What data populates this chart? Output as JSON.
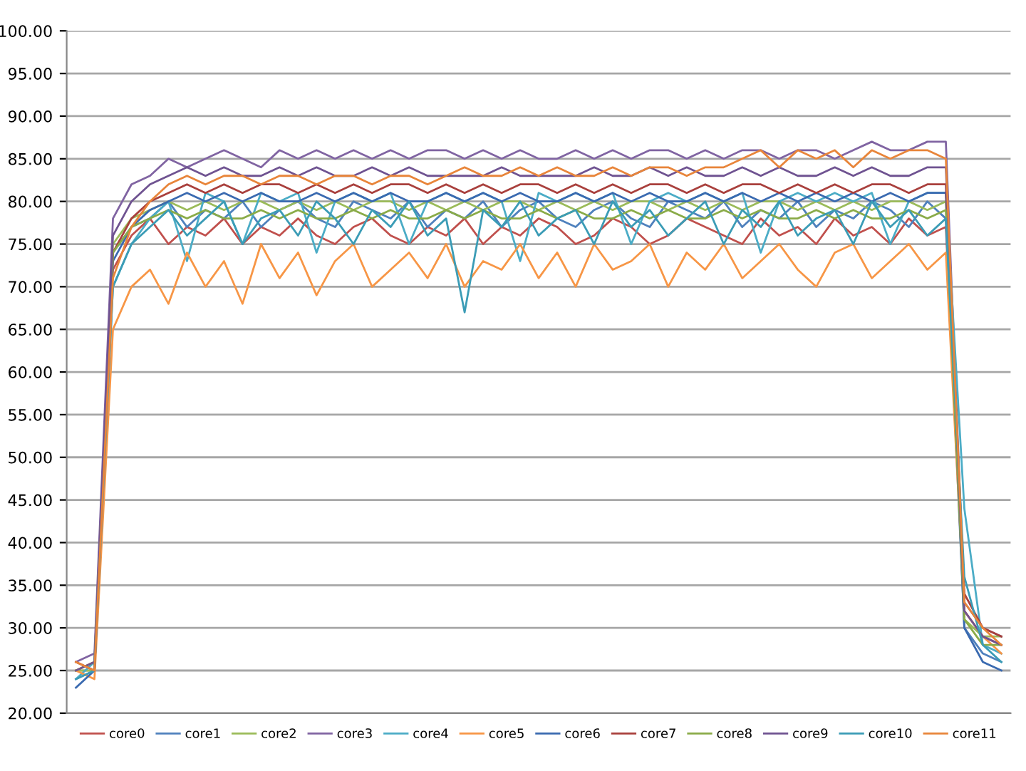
{
  "chart_data": {
    "type": "line",
    "categories": [
      null,
      null,
      null,
      null,
      null,
      null,
      null,
      null,
      null,
      null,
      null,
      null,
      null,
      null,
      null,
      null,
      null,
      null,
      null,
      null,
      null,
      null,
      null,
      null,
      null,
      null,
      null,
      null,
      null,
      null,
      null,
      null,
      null,
      null,
      null,
      null,
      null,
      null,
      null,
      null,
      null,
      null,
      null,
      null,
      null,
      null,
      null,
      null,
      null,
      null,
      null
    ],
    "ylim": [
      20,
      100
    ],
    "yticks": [
      {
        "value": 20,
        "label": "20.00"
      },
      {
        "value": 25,
        "label": "25.00"
      },
      {
        "value": 30,
        "label": "30.00"
      },
      {
        "value": 35,
        "label": "35.00"
      },
      {
        "value": 40,
        "label": "40.00"
      },
      {
        "value": 45,
        "label": "45.00"
      },
      {
        "value": 50,
        "label": "50.00"
      },
      {
        "value": 55,
        "label": "55.00"
      },
      {
        "value": 60,
        "label": "60.00"
      },
      {
        "value": 65,
        "label": "65.00"
      },
      {
        "value": 70,
        "label": "70.00"
      },
      {
        "value": 75,
        "label": "75.00"
      },
      {
        "value": 80,
        "label": "80.00"
      },
      {
        "value": 85,
        "label": "85.00"
      },
      {
        "value": 90,
        "label": "90.00"
      },
      {
        "value": 95,
        "label": "95.00"
      },
      {
        "value": 100,
        "label": "100.00"
      }
    ],
    "grid": "y",
    "legend": "bottom",
    "tick_labels": "y",
    "marker": "none",
    "line_style": "solid",
    "series": [
      {
        "name": "core0",
        "color": "#c0504d",
        "values": [
          25,
          26,
          72,
          76,
          78,
          75,
          77,
          76,
          78,
          75,
          77,
          76,
          78,
          76,
          75,
          77,
          78,
          76,
          75,
          77,
          76,
          78,
          75,
          77,
          76,
          78,
          77,
          75,
          76,
          78,
          77,
          75,
          76,
          78,
          77,
          76,
          75,
          78,
          76,
          77,
          75,
          78,
          76,
          77,
          75,
          78,
          76,
          77,
          32,
          29,
          28
        ]
      },
      {
        "name": "core1",
        "color": "#4f81bd",
        "values": [
          24,
          25,
          74,
          77,
          78,
          80,
          77,
          79,
          78,
          80,
          77,
          79,
          80,
          78,
          77,
          80,
          79,
          78,
          80,
          77,
          79,
          78,
          80,
          77,
          79,
          80,
          78,
          77,
          79,
          80,
          78,
          77,
          80,
          79,
          78,
          80,
          77,
          79,
          78,
          80,
          77,
          79,
          78,
          80,
          79,
          77,
          80,
          78,
          30,
          27,
          26
        ]
      },
      {
        "name": "core2",
        "color": "#9bbb59",
        "values": [
          25,
          25,
          75,
          78,
          79,
          80,
          79,
          80,
          79,
          80,
          80,
          79,
          80,
          79,
          80,
          79,
          80,
          80,
          79,
          80,
          79,
          80,
          79,
          80,
          80,
          79,
          80,
          79,
          80,
          79,
          80,
          80,
          79,
          80,
          79,
          80,
          79,
          80,
          80,
          79,
          80,
          79,
          80,
          79,
          80,
          80,
          79,
          80,
          31,
          29,
          29
        ]
      },
      {
        "name": "core3",
        "color": "#8064a2",
        "values": [
          26,
          27,
          78,
          82,
          83,
          85,
          84,
          85,
          86,
          85,
          84,
          86,
          85,
          86,
          85,
          86,
          85,
          86,
          85,
          86,
          86,
          85,
          86,
          85,
          86,
          85,
          85,
          86,
          85,
          86,
          85,
          86,
          86,
          85,
          86,
          85,
          86,
          86,
          85,
          86,
          86,
          85,
          86,
          87,
          86,
          86,
          87,
          87,
          33,
          30,
          29
        ]
      },
      {
        "name": "core4",
        "color": "#4bacc6",
        "values": [
          24,
          26,
          70,
          75,
          78,
          80,
          73,
          81,
          80,
          75,
          81,
          80,
          81,
          74,
          80,
          81,
          80,
          81,
          75,
          80,
          81,
          80,
          81,
          80,
          73,
          81,
          80,
          81,
          80,
          81,
          75,
          80,
          81,
          80,
          81,
          80,
          81,
          74,
          80,
          81,
          80,
          81,
          80,
          81,
          75,
          80,
          81,
          81,
          44,
          28,
          27
        ]
      },
      {
        "name": "core5",
        "color": "#f79646",
        "values": [
          25,
          24,
          65,
          70,
          72,
          68,
          74,
          70,
          73,
          68,
          75,
          71,
          74,
          69,
          73,
          75,
          70,
          72,
          74,
          71,
          75,
          70,
          73,
          72,
          75,
          71,
          74,
          70,
          75,
          72,
          73,
          75,
          70,
          74,
          72,
          75,
          71,
          73,
          75,
          72,
          70,
          74,
          75,
          71,
          73,
          75,
          72,
          74,
          32,
          29,
          27
        ]
      },
      {
        "name": "core6",
        "color": "#3a6ab0",
        "values": [
          23,
          25,
          73,
          77,
          79,
          80,
          81,
          80,
          81,
          80,
          81,
          80,
          80,
          81,
          80,
          81,
          80,
          81,
          80,
          80,
          81,
          80,
          81,
          80,
          81,
          80,
          80,
          81,
          80,
          81,
          80,
          81,
          80,
          80,
          81,
          80,
          81,
          80,
          81,
          80,
          81,
          80,
          81,
          80,
          81,
          80,
          81,
          81,
          30,
          26,
          25
        ]
      },
      {
        "name": "core7",
        "color": "#a9403d",
        "values": [
          26,
          25,
          74,
          78,
          80,
          81,
          82,
          81,
          82,
          81,
          82,
          82,
          81,
          82,
          81,
          82,
          81,
          82,
          82,
          81,
          82,
          81,
          82,
          81,
          82,
          82,
          81,
          82,
          81,
          82,
          81,
          82,
          82,
          81,
          82,
          81,
          82,
          82,
          81,
          82,
          81,
          82,
          81,
          82,
          82,
          81,
          82,
          82,
          34,
          30,
          29
        ]
      },
      {
        "name": "core8",
        "color": "#8aab48",
        "values": [
          25,
          26,
          74,
          77,
          78,
          79,
          78,
          79,
          78,
          78,
          79,
          78,
          79,
          78,
          78,
          79,
          78,
          79,
          78,
          78,
          79,
          78,
          79,
          78,
          78,
          79,
          78,
          79,
          78,
          78,
          79,
          78,
          79,
          78,
          78,
          79,
          78,
          79,
          78,
          78,
          79,
          78,
          79,
          78,
          78,
          79,
          78,
          79,
          31,
          28,
          28
        ]
      },
      {
        "name": "core9",
        "color": "#6f5391",
        "values": [
          25,
          26,
          76,
          80,
          82,
          83,
          84,
          83,
          84,
          83,
          83,
          84,
          83,
          84,
          83,
          83,
          84,
          83,
          84,
          83,
          83,
          83,
          83,
          84,
          83,
          83,
          83,
          83,
          84,
          83,
          83,
          84,
          83,
          84,
          83,
          83,
          84,
          83,
          84,
          83,
          83,
          84,
          83,
          84,
          83,
          83,
          84,
          84,
          32,
          29,
          28
        ]
      },
      {
        "name": "core10",
        "color": "#3b9cb6",
        "values": [
          24,
          25,
          70,
          75,
          77,
          79,
          76,
          78,
          80,
          75,
          78,
          79,
          76,
          80,
          78,
          75,
          79,
          77,
          80,
          76,
          78,
          67,
          79,
          77,
          80,
          76,
          78,
          79,
          75,
          80,
          77,
          79,
          76,
          78,
          80,
          75,
          79,
          77,
          80,
          76,
          78,
          79,
          75,
          80,
          77,
          79,
          76,
          78,
          36,
          28,
          26
        ]
      },
      {
        "name": "core11",
        "color": "#e8853a",
        "values": [
          26,
          25,
          71,
          77,
          80,
          82,
          83,
          82,
          83,
          83,
          82,
          83,
          83,
          82,
          83,
          83,
          82,
          83,
          83,
          82,
          83,
          84,
          83,
          83,
          84,
          83,
          84,
          83,
          83,
          84,
          83,
          84,
          84,
          83,
          84,
          84,
          85,
          86,
          84,
          86,
          85,
          86,
          84,
          86,
          85,
          86,
          86,
          85,
          33,
          30,
          28
        ]
      }
    ]
  }
}
